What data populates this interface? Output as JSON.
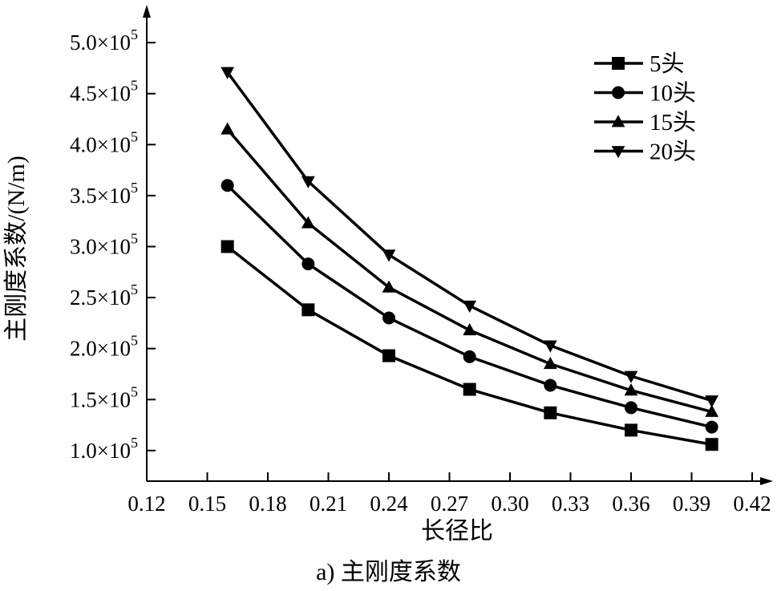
{
  "caption": "a) 主刚度系数",
  "chart_data": {
    "type": "line",
    "title": "",
    "xlabel": "长径比",
    "ylabel": "主刚度系数/(N/m)",
    "xlim": [
      0.12,
      0.42
    ],
    "ylim": [
      70000,
      530000
    ],
    "x_ticks": [
      {
        "v": 0.12,
        "label": "0.12"
      },
      {
        "v": 0.15,
        "label": "0.15"
      },
      {
        "v": 0.18,
        "label": "0.18"
      },
      {
        "v": 0.21,
        "label": "0.21"
      },
      {
        "v": 0.24,
        "label": "0.24"
      },
      {
        "v": 0.27,
        "label": "0.27"
      },
      {
        "v": 0.3,
        "label": "0.30"
      },
      {
        "v": 0.33,
        "label": "0.33"
      },
      {
        "v": 0.36,
        "label": "0.36"
      },
      {
        "v": 0.39,
        "label": "0.39"
      },
      {
        "v": 0.42,
        "label": "0.42"
      }
    ],
    "y_ticks": [
      {
        "v": 100000,
        "label": "1.0×10",
        "exp": "5"
      },
      {
        "v": 150000,
        "label": "1.5×10",
        "exp": "5"
      },
      {
        "v": 200000,
        "label": "2.0×10",
        "exp": "5"
      },
      {
        "v": 250000,
        "label": "2.5×10",
        "exp": "5"
      },
      {
        "v": 300000,
        "label": "3.0×10",
        "exp": "5"
      },
      {
        "v": 350000,
        "label": "3.5×10",
        "exp": "5"
      },
      {
        "v": 400000,
        "label": "4.0×10",
        "exp": "5"
      },
      {
        "v": 450000,
        "label": "4.5×10",
        "exp": "5"
      },
      {
        "v": 500000,
        "label": "5.0×10",
        "exp": "5"
      }
    ],
    "x": [
      0.16,
      0.2,
      0.24,
      0.28,
      0.32,
      0.36,
      0.4
    ],
    "series": [
      {
        "name": "5头",
        "marker": "square",
        "values": [
          300000,
          238000,
          193000,
          160000,
          137000,
          120000,
          106000
        ]
      },
      {
        "name": "10头",
        "marker": "circle",
        "values": [
          360000,
          283000,
          230000,
          192000,
          164000,
          142000,
          123000
        ]
      },
      {
        "name": "15头",
        "marker": "triangle-up",
        "values": [
          415000,
          323000,
          260000,
          218000,
          185000,
          159000,
          138000
        ]
      },
      {
        "name": "20头",
        "marker": "triangle-down",
        "values": [
          471000,
          364000,
          292000,
          242000,
          203000,
          173000,
          149000
        ]
      }
    ],
    "grid": false,
    "legend_position": "top-right"
  }
}
